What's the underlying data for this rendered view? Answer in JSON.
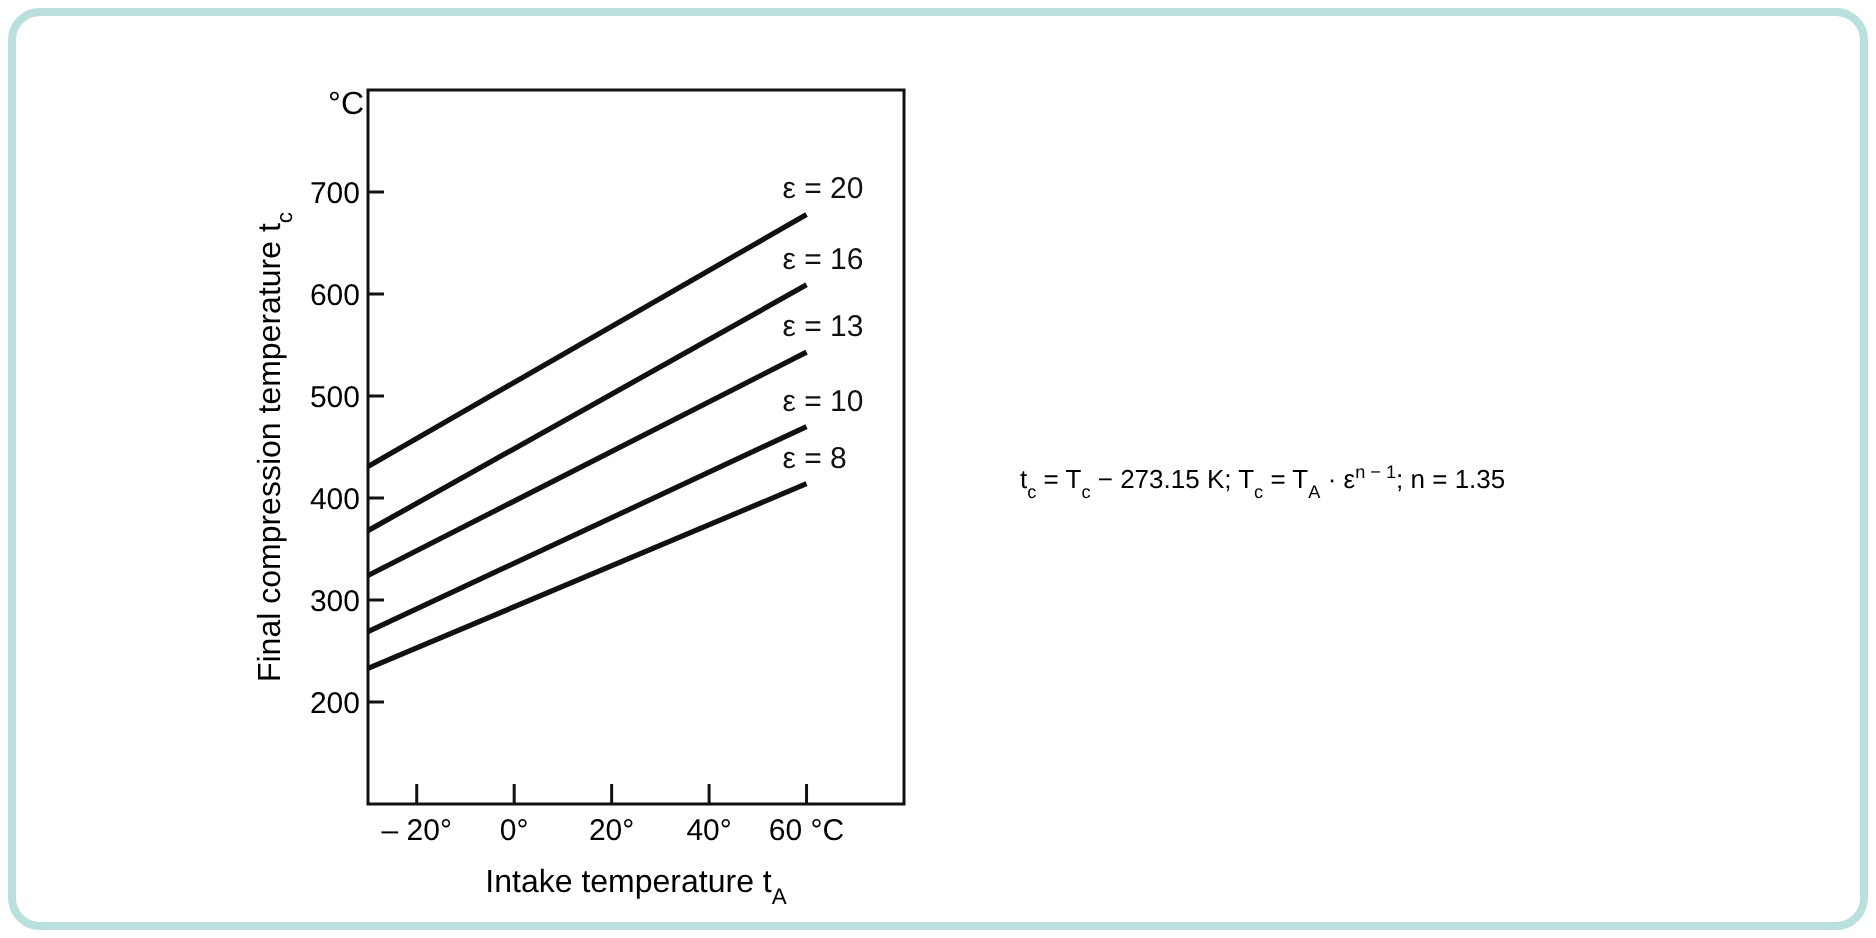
{
  "chart_data": {
    "type": "line",
    "xlabel": "Intake temperature t$_{A}$",
    "ylabel": "Final compression temperature t$_{c}$",
    "x": [
      -30,
      60
    ],
    "series": [
      {
        "name": "ε = 20",
        "color": "#111111",
        "values": [
          431,
          678
        ]
      },
      {
        "name": "ε = 16",
        "color": "#111111",
        "values": [
          368,
          609
        ]
      },
      {
        "name": "ε = 13",
        "color": "#111111",
        "values": [
          324,
          543
        ]
      },
      {
        "name": "ε = 10",
        "color": "#111111",
        "values": [
          269,
          470
        ]
      },
      {
        "name": "ε = 8",
        "color": "#111111",
        "values": [
          233,
          414
        ]
      }
    ],
    "xlim": [
      -30,
      80
    ],
    "xticks": [
      {
        "value": -20,
        "label": "– 20°"
      },
      {
        "value": 0,
        "label": "0°"
      },
      {
        "value": 20,
        "label": "20°"
      },
      {
        "value": 40,
        "label": "40°"
      },
      {
        "value": 60,
        "label": "60 °C"
      }
    ],
    "ylim": [
      100,
      800
    ],
    "yticks": [
      200,
      300,
      400,
      500,
      600,
      700
    ],
    "grid": false,
    "marker": "none",
    "line_style": "solid",
    "annotations": [
      "°C",
      "t$_{c}$ = T$_{c}$ − 273.15 K; T$_{c}$ = T$_{A}$ · ε$^{n − 1}$; n = 1.35"
    ]
  }
}
